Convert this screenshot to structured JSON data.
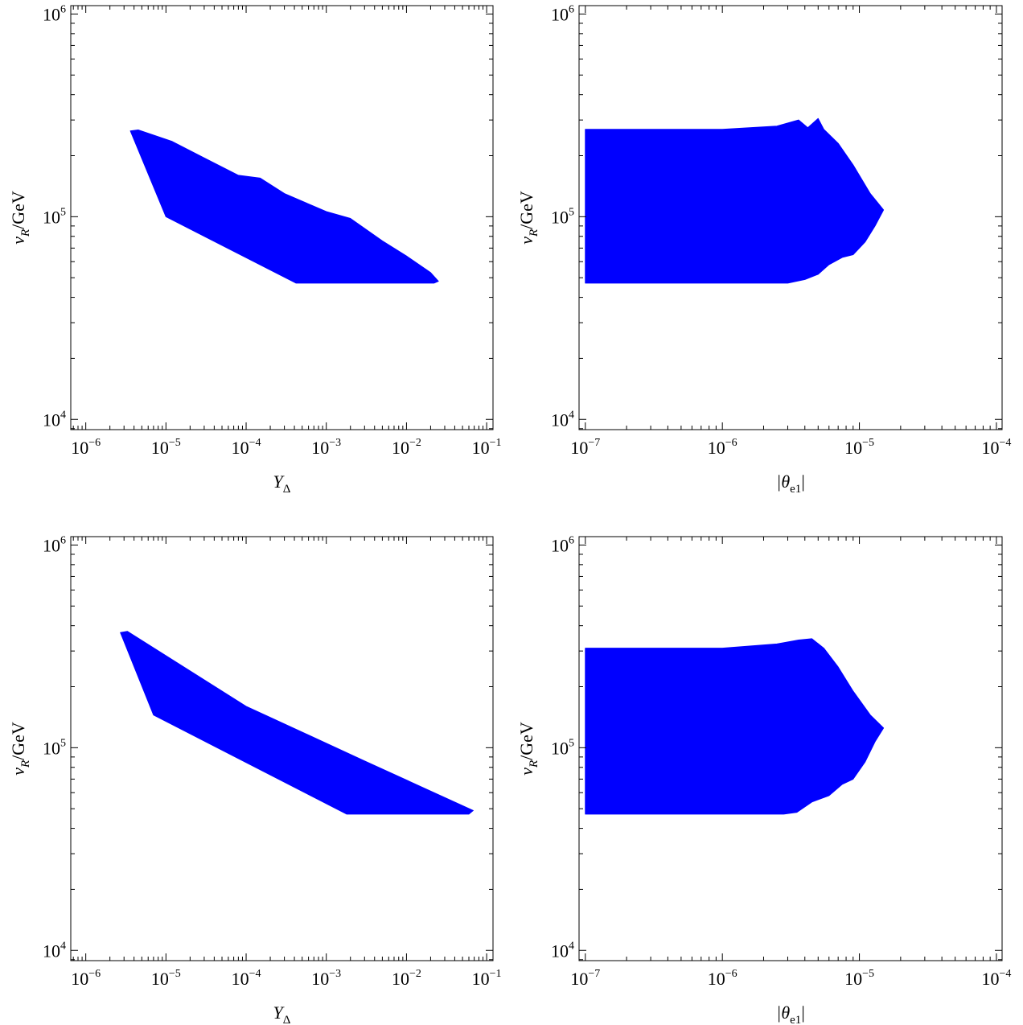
{
  "colors": {
    "region": "#0000ff",
    "axis": "#000000",
    "background": "#ffffff"
  },
  "chart_data": [
    {
      "type": "area",
      "xscale": "log",
      "yscale": "log",
      "xlabel_base": "Y",
      "xlabel_sub": "Δ",
      "ylabel_base": "v",
      "ylabel_sub": "R",
      "ylabel_rest": "/GeV",
      "xlim": [
        6.5e-07,
        0.12
      ],
      "ylim": [
        8900.0,
        1100000.0
      ],
      "xticks": [
        {
          "base": "10",
          "exp": "−6",
          "value": 1e-06
        },
        {
          "base": "10",
          "exp": "−5",
          "value": 1e-05
        },
        {
          "base": "10",
          "exp": "−4",
          "value": 0.0001
        },
        {
          "base": "10",
          "exp": "−3",
          "value": 0.001
        },
        {
          "base": "10",
          "exp": "−2",
          "value": 0.01
        },
        {
          "base": "10",
          "exp": "−1",
          "value": 0.1
        }
      ],
      "yticks": [
        {
          "base": "10",
          "exp": "4",
          "value": 10000.0
        },
        {
          "base": "10",
          "exp": "5",
          "value": 100000.0
        },
        {
          "base": "10",
          "exp": "6",
          "value": 1000000.0
        }
      ],
      "region": [
        [
          3.6e-06,
          265000.0
        ],
        [
          4.5e-06,
          268000.0
        ],
        [
          6.5e-06,
          255000.0
        ],
        [
          1.2e-05,
          235000.0
        ],
        [
          3e-05,
          195000.0
        ],
        [
          8e-05,
          160000.0
        ],
        [
          0.00015,
          155000.0
        ],
        [
          0.0003,
          130000.0
        ],
        [
          0.001,
          106000.0
        ],
        [
          0.002,
          98000.0
        ],
        [
          0.005,
          76000.0
        ],
        [
          0.01,
          64000.0
        ],
        [
          0.02,
          53000.0
        ],
        [
          0.025,
          48000.0
        ],
        [
          0.022,
          47000.0
        ],
        [
          0.00042,
          47000.0
        ],
        [
          1e-05,
          100000.0
        ]
      ]
    },
    {
      "type": "area",
      "xscale": "log",
      "yscale": "log",
      "xlabel_base": "|θ",
      "xlabel_sub": "e1",
      "xlabel_end": "|",
      "ylabel_base": "v",
      "ylabel_sub": "R",
      "ylabel_rest": "/GeV",
      "xlim": [
        9e-08,
        0.00011
      ],
      "ylim": [
        8900.0,
        1100000.0
      ],
      "xticks": [
        {
          "base": "10",
          "exp": "−7",
          "value": 1e-07
        },
        {
          "base": "10",
          "exp": "−6",
          "value": 1e-06
        },
        {
          "base": "10",
          "exp": "−5",
          "value": 1e-05
        },
        {
          "base": "10",
          "exp": "−4",
          "value": 0.0001
        }
      ],
      "yticks": [
        {
          "base": "10",
          "exp": "4",
          "value": 10000.0
        },
        {
          "base": "10",
          "exp": "5",
          "value": 100000.0
        },
        {
          "base": "10",
          "exp": "6",
          "value": 1000000.0
        }
      ],
      "region": [
        [
          1e-07,
          270000.0
        ],
        [
          1e-06,
          270000.0
        ],
        [
          2.5e-06,
          280000.0
        ],
        [
          3.6e-06,
          300000.0
        ],
        [
          4.2e-06,
          275000.0
        ],
        [
          5e-06,
          305000.0
        ],
        [
          5.5e-06,
          270000.0
        ],
        [
          7e-06,
          230000.0
        ],
        [
          9e-06,
          180000.0
        ],
        [
          1.2e-05,
          130000.0
        ],
        [
          1.5e-05,
          108000.0
        ],
        [
          1.3e-05,
          90000.0
        ],
        [
          1.1e-05,
          75000.0
        ],
        [
          9e-06,
          65000.0
        ],
        [
          7.5e-06,
          63000.0
        ],
        [
          6e-06,
          58000.0
        ],
        [
          5e-06,
          52000.0
        ],
        [
          4e-06,
          49000.0
        ],
        [
          3e-06,
          47000.0
        ],
        [
          1e-07,
          47000.0
        ]
      ]
    },
    {
      "type": "area",
      "xscale": "log",
      "yscale": "log",
      "xlabel_base": "Y",
      "xlabel_sub": "Δ",
      "ylabel_base": "v",
      "ylabel_sub": "R",
      "ylabel_rest": "/GeV",
      "xlim": [
        6.5e-07,
        0.12
      ],
      "ylim": [
        8900.0,
        1100000.0
      ],
      "xticks": [
        {
          "base": "10",
          "exp": "−6",
          "value": 1e-06
        },
        {
          "base": "10",
          "exp": "−5",
          "value": 1e-05
        },
        {
          "base": "10",
          "exp": "−4",
          "value": 0.0001
        },
        {
          "base": "10",
          "exp": "−3",
          "value": 0.001
        },
        {
          "base": "10",
          "exp": "−2",
          "value": 0.01
        },
        {
          "base": "10",
          "exp": "−1",
          "value": 0.1
        }
      ],
      "yticks": [
        {
          "base": "10",
          "exp": "4",
          "value": 10000.0
        },
        {
          "base": "10",
          "exp": "5",
          "value": 100000.0
        },
        {
          "base": "10",
          "exp": "6",
          "value": 1000000.0
        }
      ],
      "region": [
        [
          2.7e-06,
          370000.0
        ],
        [
          3.3e-06,
          375000.0
        ],
        [
          0.0001,
          160000.0
        ],
        [
          0.003,
          86000.0
        ],
        [
          0.068,
          49000.0
        ],
        [
          0.06,
          47000.0
        ],
        [
          0.0018,
          47000.0
        ],
        [
          7e-06,
          145000.0
        ]
      ]
    },
    {
      "type": "area",
      "xscale": "log",
      "yscale": "log",
      "xlabel_base": "|θ",
      "xlabel_sub": "e1",
      "xlabel_end": "|",
      "ylabel_base": "v",
      "ylabel_sub": "R",
      "ylabel_rest": "/GeV",
      "xlim": [
        9e-08,
        0.00011
      ],
      "ylim": [
        8900.0,
        1100000.0
      ],
      "xticks": [
        {
          "base": "10",
          "exp": "−7",
          "value": 1e-07
        },
        {
          "base": "10",
          "exp": "−6",
          "value": 1e-06
        },
        {
          "base": "10",
          "exp": "−5",
          "value": 1e-05
        },
        {
          "base": "10",
          "exp": "−4",
          "value": 0.0001
        }
      ],
      "yticks": [
        {
          "base": "10",
          "exp": "4",
          "value": 10000.0
        },
        {
          "base": "10",
          "exp": "5",
          "value": 100000.0
        },
        {
          "base": "10",
          "exp": "6",
          "value": 1000000.0
        }
      ],
      "region": [
        [
          1e-07,
          310000.0
        ],
        [
          1e-06,
          310000.0
        ],
        [
          2.5e-06,
          325000.0
        ],
        [
          3.6e-06,
          340000.0
        ],
        [
          4.5e-06,
          345000.0
        ],
        [
          5.5e-06,
          310000.0
        ],
        [
          7e-06,
          250000.0
        ],
        [
          9e-06,
          190000.0
        ],
        [
          1.2e-05,
          145000.0
        ],
        [
          1.5e-05,
          125000.0
        ],
        [
          1.3e-05,
          107000.0
        ],
        [
          1.1e-05,
          85000.0
        ],
        [
          9e-06,
          70000.0
        ],
        [
          7.5e-06,
          66000.0
        ],
        [
          6e-06,
          58000.0
        ],
        [
          4.5e-06,
          54000.0
        ],
        [
          3.5e-06,
          48000.0
        ],
        [
          2.8e-06,
          47000.0
        ],
        [
          1e-07,
          47000.0
        ]
      ]
    }
  ]
}
